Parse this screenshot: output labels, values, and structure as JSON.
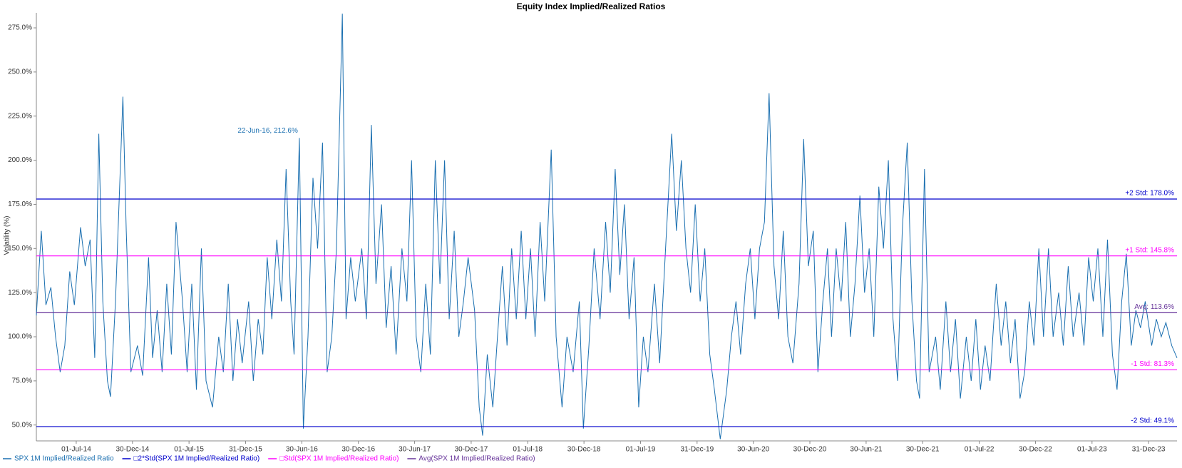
{
  "chart_data": {
    "type": "line",
    "title": "Equity Index Implied/Realized Ratios",
    "ylabel": "Volatility (%)",
    "xlim": [
      "2014-02-22",
      "2024-04-01"
    ],
    "ylim": [
      41,
      283.5
    ],
    "yticks": [
      {
        "value": 50,
        "label": "50.0%"
      },
      {
        "value": 75,
        "label": "75.0%"
      },
      {
        "value": 100,
        "label": "100.0%"
      },
      {
        "value": 125,
        "label": "125.0%"
      },
      {
        "value": 150,
        "label": "150.0%"
      },
      {
        "value": 175,
        "label": "175.0%"
      },
      {
        "value": 200,
        "label": "200.0%"
      },
      {
        "value": 225,
        "label": "225.0%"
      },
      {
        "value": 250,
        "label": "250.0%"
      },
      {
        "value": 275,
        "label": "275.0%"
      }
    ],
    "xticks": [
      {
        "value": "2014-07-01",
        "label": "01-Jul-14"
      },
      {
        "value": "2014-12-30",
        "label": "30-Dec-14"
      },
      {
        "value": "2015-07-01",
        "label": "01-Jul-15"
      },
      {
        "value": "2015-12-31",
        "label": "31-Dec-15"
      },
      {
        "value": "2016-06-30",
        "label": "30-Jun-16"
      },
      {
        "value": "2016-12-30",
        "label": "30-Dec-16"
      },
      {
        "value": "2017-06-30",
        "label": "30-Jun-17"
      },
      {
        "value": "2017-12-30",
        "label": "30-Dec-17"
      },
      {
        "value": "2018-07-01",
        "label": "01-Jul-18"
      },
      {
        "value": "2018-12-30",
        "label": "30-Dec-18"
      },
      {
        "value": "2019-07-01",
        "label": "01-Jul-19"
      },
      {
        "value": "2019-12-31",
        "label": "31-Dec-19"
      },
      {
        "value": "2020-06-30",
        "label": "30-Jun-20"
      },
      {
        "value": "2020-12-30",
        "label": "30-Dec-20"
      },
      {
        "value": "2021-06-30",
        "label": "30-Jun-21"
      },
      {
        "value": "2021-12-30",
        "label": "30-Dec-21"
      },
      {
        "value": "2022-07-01",
        "label": "01-Jul-22"
      },
      {
        "value": "2022-12-30",
        "label": "30-Dec-22"
      },
      {
        "value": "2023-07-01",
        "label": "01-Jul-23"
      },
      {
        "value": "2023-12-31",
        "label": "31-Dec-23"
      }
    ],
    "series": [
      {
        "name": "SPX 1M Implied/Realized Ratio",
        "color": "#1a6fb0",
        "x": [
          "2014-02-22",
          "2014-03-10",
          "2014-03-25",
          "2014-04-10",
          "2014-04-25",
          "2014-05-10",
          "2014-05-25",
          "2014-06-10",
          "2014-06-25",
          "2014-07-15",
          "2014-07-30",
          "2014-08-15",
          "2014-08-30",
          "2014-09-12",
          "2014-09-25",
          "2014-10-10",
          "2014-10-20",
          "2014-11-05",
          "2014-11-29",
          "2014-12-10",
          "2014-12-25",
          "2015-01-15",
          "2015-02-01",
          "2015-02-20",
          "2015-03-05",
          "2015-03-20",
          "2015-04-05",
          "2015-04-20",
          "2015-05-05",
          "2015-05-20",
          "2015-06-10",
          "2015-06-25",
          "2015-07-10",
          "2015-07-25",
          "2015-08-10",
          "2015-08-25",
          "2015-09-15",
          "2015-10-05",
          "2015-10-20",
          "2015-11-05",
          "2015-11-20",
          "2015-12-05",
          "2015-12-20",
          "2016-01-10",
          "2016-01-25",
          "2016-02-10",
          "2016-02-25",
          "2016-03-10",
          "2016-03-25",
          "2016-04-10",
          "2016-04-25",
          "2016-05-10",
          "2016-05-25",
          "2016-06-05",
          "2016-06-22",
          "2016-07-05",
          "2016-07-20",
          "2016-08-05",
          "2016-08-20",
          "2016-09-05",
          "2016-09-20",
          "2016-10-05",
          "2016-10-20",
          "2016-11-08",
          "2016-11-20",
          "2016-12-05",
          "2016-12-20",
          "2017-01-10",
          "2017-01-25",
          "2017-02-10",
          "2017-02-25",
          "2017-03-15",
          "2017-03-30",
          "2017-04-15",
          "2017-05-01",
          "2017-05-20",
          "2017-06-05",
          "2017-06-20",
          "2017-07-05",
          "2017-07-20",
          "2017-08-05",
          "2017-08-20",
          "2017-09-05",
          "2017-09-20",
          "2017-10-05",
          "2017-10-20",
          "2017-11-05",
          "2017-11-20",
          "2017-12-05",
          "2017-12-20",
          "2018-01-10",
          "2018-01-25",
          "2018-02-05",
          "2018-02-20",
          "2018-03-10",
          "2018-03-25",
          "2018-04-10",
          "2018-04-25",
          "2018-05-10",
          "2018-05-25",
          "2018-06-10",
          "2018-06-25",
          "2018-07-10",
          "2018-07-25",
          "2018-08-10",
          "2018-08-25",
          "2018-09-15",
          "2018-10-01",
          "2018-10-20",
          "2018-11-05",
          "2018-11-25",
          "2018-12-15",
          "2018-12-28",
          "2019-01-15",
          "2019-02-01",
          "2019-02-20",
          "2019-03-10",
          "2019-03-25",
          "2019-04-10",
          "2019-04-25",
          "2019-05-10",
          "2019-05-25",
          "2019-06-10",
          "2019-06-25",
          "2019-07-10",
          "2019-07-25",
          "2019-08-15",
          "2019-09-01",
          "2019-09-20",
          "2019-10-10",
          "2019-10-25",
          "2019-11-10",
          "2019-11-25",
          "2019-12-10",
          "2019-12-25",
          "2020-01-10",
          "2020-01-25",
          "2020-02-10",
          "2020-02-25",
          "2020-03-15",
          "2020-04-05",
          "2020-04-20",
          "2020-05-05",
          "2020-05-20",
          "2020-06-05",
          "2020-06-20",
          "2020-07-05",
          "2020-07-20",
          "2020-08-05",
          "2020-08-20",
          "2020-09-05",
          "2020-09-20",
          "2020-10-05",
          "2020-10-20",
          "2020-11-05",
          "2020-11-25",
          "2020-12-10",
          "2020-12-25",
          "2021-01-10",
          "2021-01-25",
          "2021-02-10",
          "2021-02-25",
          "2021-03-10",
          "2021-03-25",
          "2021-04-10",
          "2021-04-25",
          "2021-05-10",
          "2021-05-25",
          "2021-06-10",
          "2021-06-25",
          "2021-07-10",
          "2021-07-25",
          "2021-08-10",
          "2021-08-25",
          "2021-09-10",
          "2021-09-25",
          "2021-10-10",
          "2021-10-25",
          "2021-11-10",
          "2021-11-25",
          "2021-12-10",
          "2021-12-20",
          "2022-01-05",
          "2022-01-20",
          "2022-02-10",
          "2022-02-25",
          "2022-03-15",
          "2022-03-30",
          "2022-04-15",
          "2022-05-01",
          "2022-05-20",
          "2022-06-05",
          "2022-06-20",
          "2022-07-05",
          "2022-07-20",
          "2022-08-05",
          "2022-08-25",
          "2022-09-10",
          "2022-09-25",
          "2022-10-10",
          "2022-10-25",
          "2022-11-10",
          "2022-11-25",
          "2022-12-10",
          "2022-12-25",
          "2023-01-10",
          "2023-01-25",
          "2023-02-10",
          "2023-02-25",
          "2023-03-15",
          "2023-03-30",
          "2023-04-15",
          "2023-05-01",
          "2023-05-20",
          "2023-06-05",
          "2023-06-20",
          "2023-07-05",
          "2023-07-20",
          "2023-08-05",
          "2023-08-20",
          "2023-09-05",
          "2023-09-20",
          "2023-10-05",
          "2023-10-20",
          "2023-11-05",
          "2023-11-20",
          "2023-12-05",
          "2023-12-20",
          "2024-01-10",
          "2024-01-25",
          "2024-02-10",
          "2024-02-25",
          "2024-03-15",
          "2024-04-01"
        ],
        "values": [
          112,
          160,
          118,
          128,
          100,
          80,
          95,
          137,
          118,
          162,
          140,
          155,
          88,
          215,
          120,
          75,
          66,
          120,
          236,
          160,
          80,
          95,
          78,
          145,
          88,
          115,
          80,
          130,
          90,
          165,
          120,
          80,
          130,
          70,
          150,
          75,
          60,
          100,
          80,
          130,
          75,
          110,
          85,
          120,
          75,
          110,
          90,
          145,
          110,
          155,
          120,
          195,
          120,
          90,
          212.6,
          48,
          100,
          190,
          150,
          210,
          80,
          100,
          150,
          283,
          110,
          145,
          120,
          150,
          110,
          220,
          130,
          175,
          105,
          140,
          90,
          150,
          120,
          200,
          100,
          80,
          130,
          90,
          200,
          130,
          200,
          110,
          160,
          100,
          120,
          145,
          115,
          60,
          44,
          90,
          60,
          100,
          140,
          95,
          150,
          110,
          160,
          110,
          150,
          100,
          165,
          120,
          206,
          100,
          60,
          100,
          80,
          120,
          48,
          95,
          150,
          110,
          165,
          125,
          195,
          135,
          175,
          110,
          145,
          60,
          100,
          80,
          130,
          85,
          150,
          215,
          160,
          200,
          150,
          125,
          175,
          120,
          150,
          90,
          70,
          42,
          70,
          100,
          120,
          90,
          130,
          150,
          110,
          150,
          165,
          238,
          140,
          110,
          160,
          100,
          85,
          130,
          212,
          140,
          160,
          80,
          120,
          150,
          100,
          150,
          120,
          165,
          100,
          130,
          180,
          125,
          150,
          100,
          185,
          150,
          200,
          110,
          75,
          160,
          210,
          120,
          75,
          65,
          195,
          80,
          100,
          70,
          120,
          80,
          110,
          65,
          100,
          75,
          110,
          70,
          95,
          75,
          130,
          95,
          120,
          85,
          110,
          65,
          80,
          120,
          95,
          150,
          100,
          150,
          100,
          125,
          95,
          140,
          100,
          125,
          95,
          145,
          120,
          150,
          100,
          155,
          90,
          70,
          120,
          147,
          95,
          115,
          105,
          120,
          95,
          110,
          100,
          108,
          95,
          88
        ]
      }
    ],
    "bands": [
      {
        "name": "□2*Std(SPX 1M Implied/Realized Ratio)",
        "color": "#0000cc",
        "lines": [
          {
            "label": "+2 Std: 178.0%",
            "value": 178.0
          },
          {
            "label": "-2 Std: 49.1%",
            "value": 49.1
          }
        ]
      },
      {
        "name": "□Std(SPX 1M Implied/Realized Ratio)",
        "color": "#ff00ff",
        "lines": [
          {
            "label": "+1 Std: 145.8%",
            "value": 145.8
          },
          {
            "label": "-1 Std: 81.3%",
            "value": 81.3
          }
        ]
      },
      {
        "name": "Avg(SPX 1M Implied/Realized Ratio)",
        "color": "#663399",
        "lines": [
          {
            "label": "Avg: 113.6%",
            "value": 113.6
          }
        ]
      }
    ],
    "annotations": [
      {
        "text": "22-Jun-16, 212.6%",
        "x": "2016-06-22",
        "y": 212.6
      }
    ]
  }
}
